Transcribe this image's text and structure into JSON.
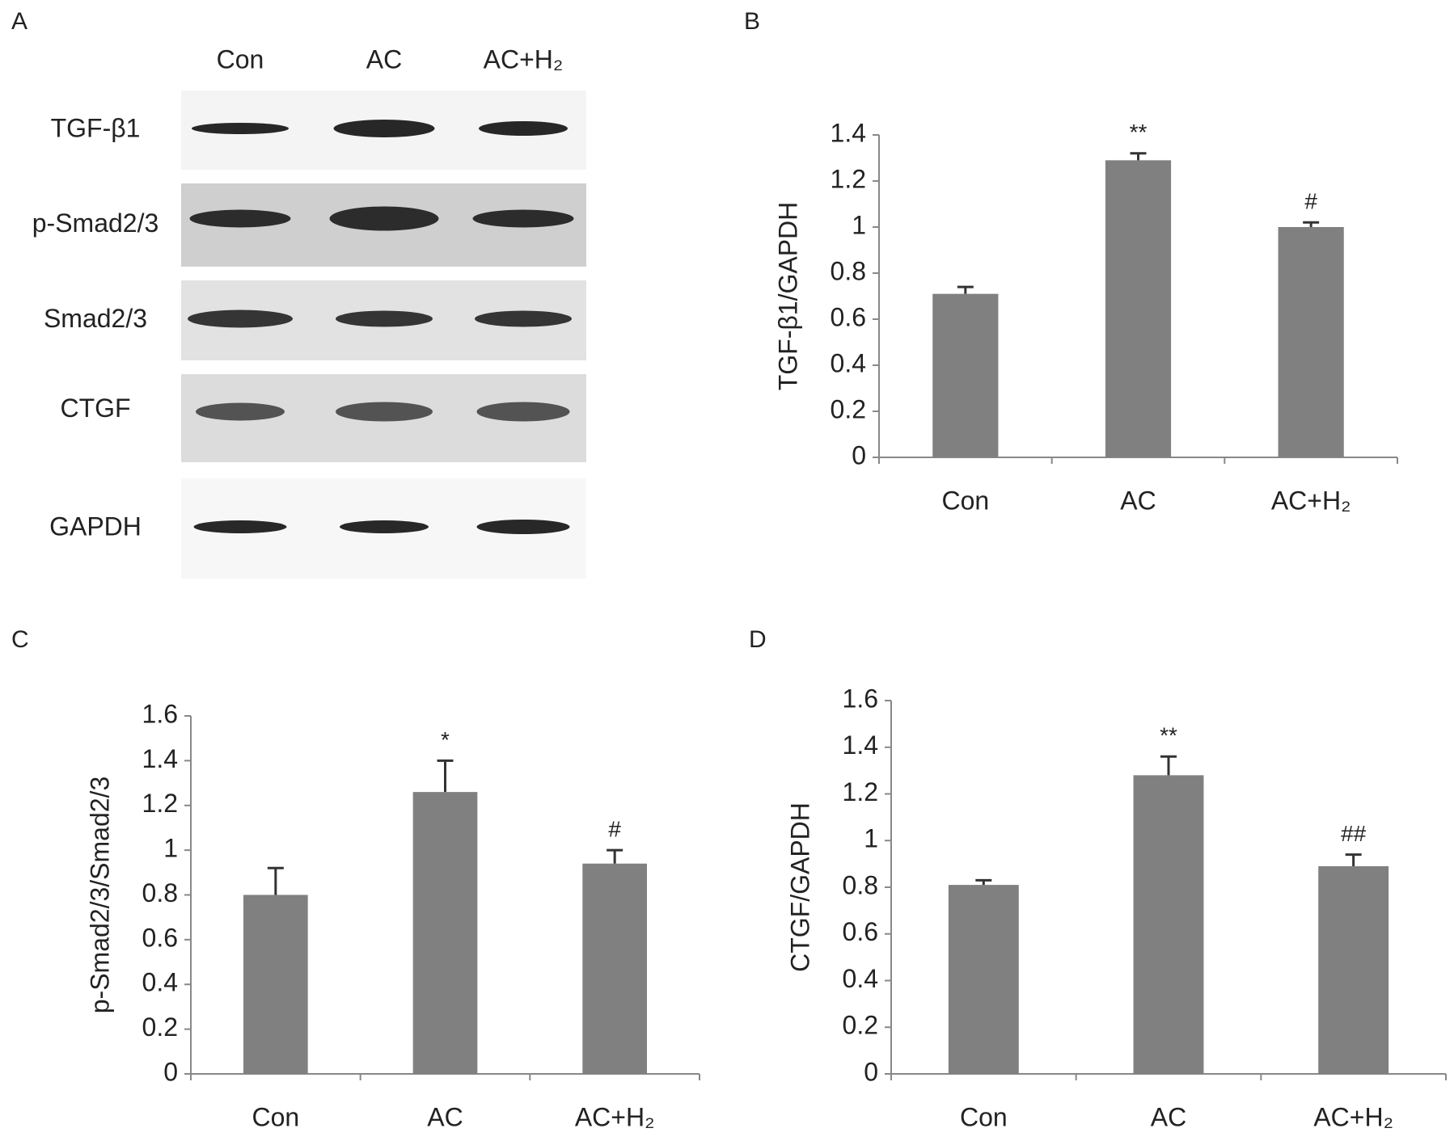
{
  "blot": {
    "panel_label": "A",
    "lanes": [
      "Con",
      "AC",
      "AC+H₂"
    ],
    "rows": [
      "TGF-β1",
      "p-Smad2/3",
      "Smad2/3",
      "CTGF",
      "GAPDH"
    ]
  },
  "chart_data": [
    {
      "type": "bar",
      "panel_label": "B",
      "y_label": "TGF-β1/GAPDH",
      "categories": [
        "Con",
        "AC",
        "AC+H₂"
      ],
      "values": [
        0.71,
        1.29,
        1.0
      ],
      "errors": [
        0.03,
        0.03,
        0.02
      ],
      "annotations": [
        null,
        "**",
        "#"
      ],
      "color": "#808080",
      "ylim": [
        0,
        1.4
      ],
      "yticks": [
        0,
        0.2,
        0.4,
        0.6,
        0.8,
        1,
        1.2,
        1.4
      ]
    },
    {
      "type": "bar",
      "panel_label": "C",
      "y_label": "p-Smad2/3/Smad2/3",
      "categories": [
        "Con",
        "AC",
        "AC+H₂"
      ],
      "values": [
        0.8,
        1.26,
        0.94
      ],
      "errors": [
        0.12,
        0.14,
        0.06
      ],
      "annotations": [
        null,
        "*",
        "#"
      ],
      "color": "#808080",
      "ylim": [
        0,
        1.6
      ],
      "yticks": [
        0,
        0.2,
        0.4,
        0.6,
        0.8,
        1,
        1.2,
        1.4,
        1.6
      ]
    },
    {
      "type": "bar",
      "panel_label": "D",
      "y_label": "CTGF/GAPDH",
      "categories": [
        "Con",
        "AC",
        "AC+H₂"
      ],
      "values": [
        0.81,
        1.28,
        0.89
      ],
      "errors": [
        0.02,
        0.08,
        0.05
      ],
      "annotations": [
        null,
        "**",
        "##"
      ],
      "color": "#808080",
      "ylim": [
        0,
        1.6
      ],
      "yticks": [
        0,
        0.2,
        0.4,
        0.6,
        0.8,
        1,
        1.2,
        1.4,
        1.6
      ]
    }
  ]
}
